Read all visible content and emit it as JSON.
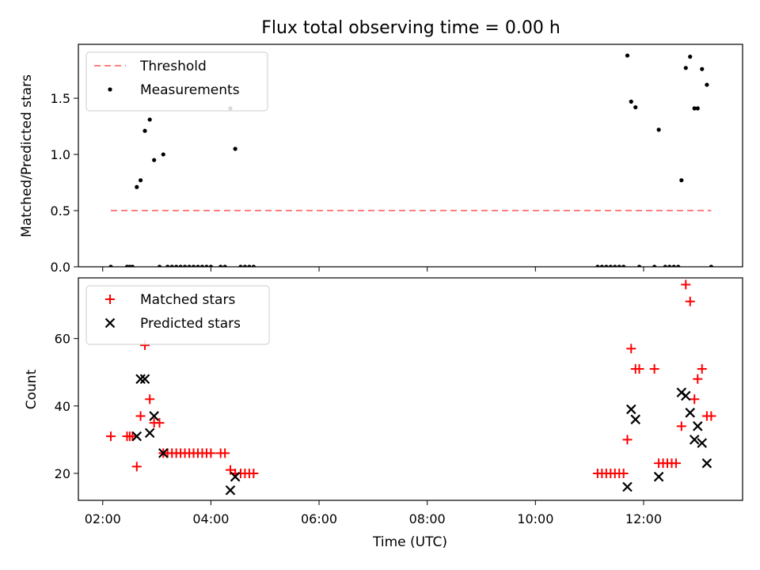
{
  "chart_data": [
    {
      "type": "scatter",
      "title": "Flux total observing time = 0.00 h",
      "xlabel": "",
      "ylabel": "Matched/Predicted stars",
      "xlim": [
        1.55,
        13.83
      ],
      "ylim": [
        0,
        1.98
      ],
      "yticks": [
        0.0,
        0.5,
        1.0,
        1.5
      ],
      "ytick_labels": [
        "0.0",
        "0.5",
        "1.0",
        "1.5"
      ],
      "legend_position": "upper-left",
      "threshold": {
        "name": "Threshold",
        "value": 0.5,
        "x_range": [
          2.15,
          13.25
        ],
        "color": "#ff7f7f"
      },
      "series": [
        {
          "name": "Measurements",
          "marker": "dot",
          "color": "#000000",
          "points": [
            [
              2.15,
              0
            ],
            [
              2.45,
              0
            ],
            [
              2.5,
              0
            ],
            [
              2.55,
              0
            ],
            [
              2.63,
              0.71
            ],
            [
              2.7,
              0.77
            ],
            [
              2.78,
              1.21
            ],
            [
              2.87,
              1.31
            ],
            [
              2.95,
              0.95
            ],
            [
              3.05,
              0
            ],
            [
              3.12,
              1.0
            ],
            [
              3.2,
              0
            ],
            [
              3.28,
              0
            ],
            [
              3.36,
              0
            ],
            [
              3.44,
              0
            ],
            [
              3.52,
              0
            ],
            [
              3.6,
              0
            ],
            [
              3.68,
              0
            ],
            [
              3.76,
              0
            ],
            [
              3.84,
              0
            ],
            [
              3.92,
              0
            ],
            [
              4.0,
              0
            ],
            [
              4.18,
              0
            ],
            [
              4.26,
              0
            ],
            [
              4.36,
              1.41
            ],
            [
              4.45,
              1.05
            ],
            [
              4.55,
              0
            ],
            [
              4.63,
              0
            ],
            [
              4.71,
              0
            ],
            [
              4.79,
              0
            ],
            [
              11.15,
              0
            ],
            [
              11.23,
              0
            ],
            [
              11.31,
              0
            ],
            [
              11.39,
              0
            ],
            [
              11.47,
              0
            ],
            [
              11.55,
              0
            ],
            [
              11.63,
              0
            ],
            [
              11.7,
              1.88
            ],
            [
              11.77,
              1.47
            ],
            [
              11.85,
              1.42
            ],
            [
              11.92,
              0
            ],
            [
              12.2,
              0
            ],
            [
              12.28,
              1.22
            ],
            [
              12.4,
              0
            ],
            [
              12.48,
              0
            ],
            [
              12.56,
              0
            ],
            [
              12.64,
              0
            ],
            [
              12.7,
              0.77
            ],
            [
              12.78,
              1.77
            ],
            [
              12.86,
              1.87
            ],
            [
              12.94,
              1.41
            ],
            [
              13.0,
              1.41
            ],
            [
              13.08,
              1.76
            ],
            [
              13.17,
              1.62
            ],
            [
              13.25,
              0
            ]
          ]
        }
      ]
    },
    {
      "type": "scatter",
      "title": "",
      "xlabel": "Time (UTC)",
      "ylabel": "Count",
      "xlim": [
        1.55,
        13.83
      ],
      "ylim": [
        12,
        78
      ],
      "yticks": [
        20,
        40,
        60
      ],
      "ytick_labels": [
        "20",
        "40",
        "60"
      ],
      "xticks": [
        2,
        4,
        6,
        8,
        10,
        12
      ],
      "xtick_labels": [
        "02:00",
        "04:00",
        "06:00",
        "08:00",
        "10:00",
        "12:00"
      ],
      "legend_position": "upper-left",
      "series": [
        {
          "name": "Matched stars",
          "marker": "plus",
          "color": "#ff0000",
          "points": [
            [
              2.15,
              31
            ],
            [
              2.45,
              31
            ],
            [
              2.5,
              31
            ],
            [
              2.55,
              31
            ],
            [
              2.63,
              22
            ],
            [
              2.7,
              37
            ],
            [
              2.78,
              58
            ],
            [
              2.87,
              42
            ],
            [
              2.95,
              35
            ],
            [
              3.05,
              35
            ],
            [
              3.12,
              26
            ],
            [
              3.2,
              26
            ],
            [
              3.28,
              26
            ],
            [
              3.36,
              26
            ],
            [
              3.44,
              26
            ],
            [
              3.52,
              26
            ],
            [
              3.6,
              26
            ],
            [
              3.68,
              26
            ],
            [
              3.76,
              26
            ],
            [
              3.84,
              26
            ],
            [
              3.92,
              26
            ],
            [
              4.0,
              26
            ],
            [
              4.18,
              26
            ],
            [
              4.26,
              26
            ],
            [
              4.36,
              21
            ],
            [
              4.45,
              20
            ],
            [
              4.55,
              20
            ],
            [
              4.63,
              20
            ],
            [
              4.71,
              20
            ],
            [
              4.79,
              20
            ],
            [
              11.15,
              20
            ],
            [
              11.23,
              20
            ],
            [
              11.31,
              20
            ],
            [
              11.39,
              20
            ],
            [
              11.47,
              20
            ],
            [
              11.55,
              20
            ],
            [
              11.63,
              20
            ],
            [
              11.7,
              30
            ],
            [
              11.77,
              57
            ],
            [
              11.85,
              51
            ],
            [
              11.92,
              51
            ],
            [
              12.2,
              51
            ],
            [
              12.28,
              23
            ],
            [
              12.36,
              23
            ],
            [
              12.44,
              23
            ],
            [
              12.52,
              23
            ],
            [
              12.6,
              23
            ],
            [
              12.7,
              34
            ],
            [
              12.78,
              76
            ],
            [
              12.86,
              71
            ],
            [
              12.94,
              42
            ],
            [
              13.0,
              48
            ],
            [
              13.08,
              51
            ],
            [
              13.17,
              37
            ],
            [
              13.25,
              37
            ]
          ]
        },
        {
          "name": "Predicted stars",
          "marker": "x",
          "color": "#000000",
          "points": [
            [
              2.63,
              31
            ],
            [
              2.7,
              48
            ],
            [
              2.78,
              48
            ],
            [
              2.87,
              32
            ],
            [
              2.95,
              37
            ],
            [
              3.12,
              26
            ],
            [
              4.36,
              15
            ],
            [
              4.45,
              19
            ],
            [
              11.7,
              16
            ],
            [
              11.77,
              39
            ],
            [
              11.85,
              36
            ],
            [
              12.28,
              19
            ],
            [
              12.7,
              44
            ],
            [
              12.78,
              43
            ],
            [
              12.86,
              38
            ],
            [
              12.94,
              30
            ],
            [
              13.0,
              34
            ],
            [
              13.08,
              29
            ],
            [
              13.17,
              23
            ]
          ]
        }
      ]
    }
  ]
}
